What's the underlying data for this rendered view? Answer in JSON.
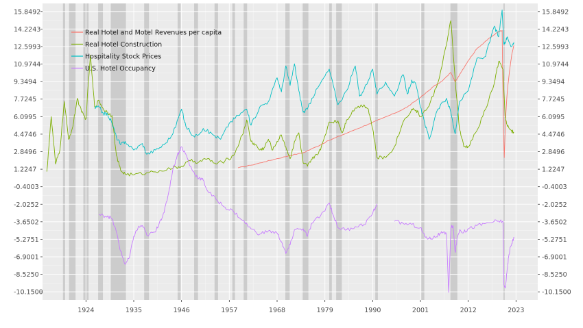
{
  "chart_data": {
    "type": "line",
    "title": "",
    "xlabel": "",
    "ylabel": "",
    "x_ticks": [
      "1924",
      "1935",
      "1946",
      "1957",
      "1968",
      "1979",
      "1990",
      "2001",
      "2012",
      "2023"
    ],
    "y_ticks": [
      "15.8492",
      "14.2243",
      "12.5993",
      "10.9744",
      "9.3494",
      "7.7245",
      "6.0995",
      "4.4746",
      "2.8496",
      "1.2247",
      "-0.4003",
      "-2.0252",
      "-3.6502",
      "-5.2751",
      "-6.9001",
      "-8.5250",
      "-10.1500"
    ],
    "xlim": [
      1914,
      2028
    ],
    "ylim": [
      -10.9,
      16.6
    ],
    "grid": true,
    "legend_position": "top-left",
    "recession_periods": [
      [
        1918.7,
        1919.2
      ],
      [
        1920.1,
        1921.6
      ],
      [
        1923.4,
        1924.6
      ],
      [
        1926.8,
        1927.9
      ],
      [
        1929.7,
        1933.2
      ],
      [
        1937.4,
        1938.5
      ],
      [
        1945.1,
        1945.8
      ],
      [
        1948.9,
        1949.8
      ],
      [
        1953.6,
        1954.4
      ],
      [
        1957.7,
        1958.3
      ],
      [
        1960.3,
        1961.1
      ],
      [
        1969.9,
        1970.9
      ],
      [
        1973.9,
        1975.2
      ],
      [
        1980.0,
        1980.6
      ],
      [
        1981.6,
        1982.9
      ],
      [
        1990.6,
        1991.2
      ],
      [
        2001.2,
        2001.9
      ],
      [
        2007.9,
        2009.5
      ],
      [
        2020.1,
        2020.4
      ]
    ],
    "series": [
      {
        "name": "Real Hotel and Motel Revenues per capita",
        "color": "#F8766D",
        "x": [
          1959,
          1962,
          1965,
          1968,
          1971,
          1974,
          1977,
          1980,
          1983,
          1986,
          1989,
          1992,
          1995,
          1998,
          2000,
          2002,
          2004,
          2006,
          2008,
          2009,
          2010,
          2012,
          2014,
          2016,
          2018,
          2019,
          2019.8,
          2020.1,
          2020.3,
          2020.6,
          2021,
          2021.5,
          2022,
          2022.5
        ],
        "values": [
          1.35,
          1.6,
          1.9,
          2.2,
          2.5,
          2.75,
          3.3,
          3.9,
          4.4,
          4.9,
          5.4,
          5.9,
          6.4,
          7.0,
          7.6,
          8.2,
          8.9,
          9.4,
          10.2,
          9.3,
          10.0,
          11.3,
          12.4,
          13.1,
          13.7,
          14.0,
          14.1,
          5.0,
          2.3,
          6.0,
          8.5,
          10.3,
          11.8,
          12.7
        ]
      },
      {
        "name": "Real Hotel Construction",
        "color": "#7CAE00",
        "x": [
          1915,
          1916,
          1917,
          1918,
          1919,
          1920,
          1921,
          1922,
          1923,
          1924,
          1925,
          1926,
          1927,
          1928,
          1929,
          1930,
          1931,
          1932,
          1933,
          1935,
          1938,
          1941,
          1944,
          1946,
          1948,
          1950,
          1952,
          1954,
          1956,
          1958,
          1960,
          1961,
          1962,
          1963,
          1964,
          1965,
          1966,
          1967,
          1968,
          1969,
          1970,
          1971,
          1972,
          1973,
          1974,
          1975,
          1976,
          1977,
          1978,
          1980,
          1982,
          1983,
          1984,
          1986,
          1988,
          1989,
          1990,
          1991,
          1993,
          1995,
          1997,
          1999,
          2000,
          2001,
          2003,
          2005,
          2007,
          2008,
          2009,
          2010,
          2011,
          2012,
          2014,
          2016,
          2018,
          2019,
          2020,
          2020.5,
          2021,
          2022,
          2022.5
        ],
        "values": [
          1.0,
          6.1,
          1.7,
          3.0,
          7.5,
          4.0,
          5.2,
          7.8,
          6.5,
          5.9,
          11.8,
          7.0,
          7.6,
          6.8,
          6.5,
          6.2,
          2.5,
          1.1,
          0.8,
          0.7,
          0.9,
          1.1,
          1.3,
          1.5,
          2.0,
          1.9,
          2.2,
          1.7,
          2.0,
          2.5,
          4.4,
          5.8,
          3.8,
          3.5,
          3.0,
          3.2,
          4.0,
          3.0,
          3.8,
          4.4,
          3.3,
          2.2,
          3.8,
          4.6,
          1.8,
          1.5,
          2.1,
          2.6,
          3.0,
          5.6,
          5.7,
          4.6,
          5.8,
          6.9,
          7.2,
          6.8,
          5.0,
          2.3,
          2.3,
          3.3,
          5.6,
          6.8,
          6.7,
          6.1,
          7.1,
          9.2,
          12.8,
          15.0,
          9.5,
          4.9,
          3.3,
          3.3,
          4.8,
          6.8,
          9.2,
          11.2,
          10.5,
          6.0,
          5.2,
          4.8,
          4.6
        ]
      },
      {
        "name": "Hospitality Stock Prices",
        "color": "#00BFC4",
        "x": [
          1926,
          1927,
          1928,
          1929,
          1930,
          1931,
          1932,
          1933,
          1935,
          1937,
          1938,
          1940,
          1942,
          1944,
          1946,
          1947,
          1949,
          1951,
          1953,
          1955,
          1957,
          1959,
          1961,
          1962,
          1964,
          1966,
          1968,
          1969,
          1970,
          1971,
          1972,
          1973,
          1974,
          1975,
          1976,
          1978,
          1980,
          1982,
          1984,
          1986,
          1987,
          1988,
          1990,
          1991,
          1993,
          1995,
          1997,
          1998,
          1999,
          2000,
          2001,
          2002,
          2003,
          2005,
          2007,
          2008,
          2009,
          2010,
          2012,
          2014,
          2016,
          2018,
          2019,
          2019.8,
          2020.2,
          2020.5,
          2021,
          2022,
          2022.5
        ],
        "values": [
          6.9,
          7.0,
          6.4,
          6.3,
          5.5,
          4.2,
          3.5,
          3.8,
          3.0,
          3.6,
          2.6,
          3.0,
          3.5,
          4.5,
          6.8,
          5.2,
          4.2,
          5.0,
          4.5,
          4.0,
          5.5,
          6.2,
          6.8,
          5.3,
          7.0,
          7.5,
          9.7,
          8.4,
          10.8,
          9.0,
          11.0,
          8.5,
          6.5,
          6.8,
          7.8,
          9.2,
          10.5,
          7.2,
          8.5,
          10.8,
          8.0,
          8.6,
          10.5,
          8.2,
          9.3,
          8.0,
          10.0,
          8.2,
          9.5,
          9.0,
          7.0,
          5.5,
          4.0,
          6.8,
          7.8,
          6.5,
          4.5,
          7.5,
          8.5,
          11.5,
          11.7,
          14.5,
          13.5,
          16.0,
          12.8,
          13.0,
          13.5,
          12.6,
          13.0
        ]
      },
      {
        "name": "U.S. Hotel Occupancy",
        "color": "#C77CFF",
        "x": [
          1927,
          1928,
          1929,
          1930,
          1931,
          1932,
          1933,
          1934,
          1935,
          1936,
          1937,
          1938,
          1940,
          1941,
          1942,
          1943,
          1944,
          1945,
          1946,
          1947,
          1948,
          1949,
          1950,
          1951,
          1952,
          1954,
          1956,
          1958,
          1960,
          1962,
          1964,
          1966,
          1968,
          1969,
          1970,
          1971,
          1972,
          1974,
          1975,
          1976,
          1978,
          1980,
          1981,
          1982,
          1984,
          1986,
          1988,
          1990,
          1991
        ],
        "values": [
          -3.0,
          -3.1,
          -3.1,
          -3.4,
          -4.6,
          -6.4,
          -7.6,
          -7.0,
          -5.0,
          -4.2,
          -4.0,
          -4.9,
          -4.6,
          -3.6,
          -2.8,
          -1.0,
          1.2,
          2.5,
          3.3,
          2.6,
          1.5,
          0.8,
          0.4,
          0.2,
          -0.8,
          -1.6,
          -2.3,
          -2.7,
          -3.5,
          -4.3,
          -4.8,
          -4.5,
          -4.7,
          -5.5,
          -6.6,
          -5.8,
          -4.4,
          -4.3,
          -5.0,
          -3.8,
          -3.1,
          -1.9,
          -3.1,
          -4.2,
          -4.4,
          -4.1,
          -3.9,
          -2.9,
          -2.0
        ]
      },
      {
        "name": "",
        "color": "#C77CFF",
        "x": [
          1995,
          1997,
          1999,
          2001,
          2002,
          2003,
          2004,
          2005,
          2006,
          2007,
          2007.5,
          2008,
          2008.5,
          2009,
          2009.5,
          2010,
          2011,
          2012,
          2014,
          2016,
          2018,
          2019,
          2020.0,
          2020.2,
          2020.5,
          2020.9,
          2021.3,
          2021.7,
          2022.2,
          2022.6
        ],
        "values": [
          -3.6,
          -3.8,
          -3.9,
          -4.2,
          -5.0,
          -5.2,
          -5.1,
          -4.9,
          -4.7,
          -4.8,
          -10.2,
          -4.2,
          -4.0,
          -6.5,
          -5.1,
          -4.4,
          -4.6,
          -4.3,
          -4.0,
          -3.8,
          -3.6,
          -3.6,
          -3.6,
          -9.5,
          -9.8,
          -8.4,
          -6.9,
          -6.0,
          -5.4,
          -5.1
        ]
      }
    ]
  }
}
